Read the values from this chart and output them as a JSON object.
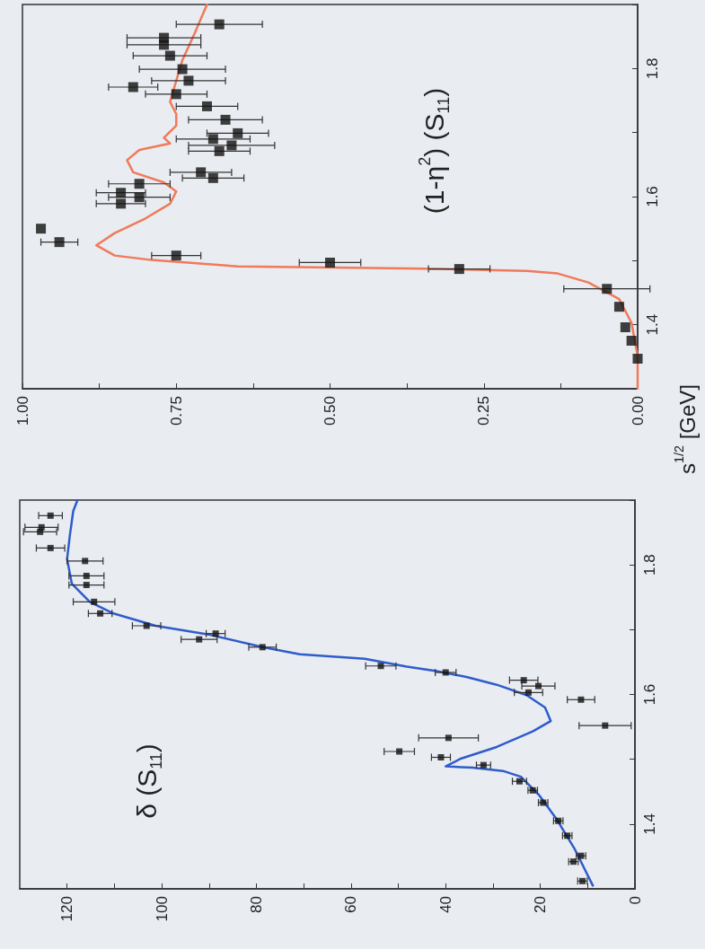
{
  "chart_data": [
    {
      "type": "scatter",
      "annotations": [
        "(1-η$^{2}$) (S$_{11}$)"
      ],
      "ylabel": "s$^{1/2}$ [GeV]",
      "ylim": [
        1.3,
        1.9
      ],
      "yticks": [
        {
          "value": 1.3,
          "label": null
        },
        1.4,
        {
          "value": 1.5,
          "label": null
        },
        1.6,
        {
          "value": 1.7,
          "label": null
        },
        1.8,
        {
          "value": 1.9,
          "label": null
        }
      ],
      "xlim": [
        1,
        0
      ],
      "xticks": [
        {
          "value": 0,
          "label": "0.00"
        },
        {
          "value": 0.125,
          "label": null
        },
        0.25,
        {
          "value": 0.375,
          "label": null
        },
        {
          "value": 0.5,
          "label": "0.50"
        },
        {
          "value": 0.625,
          "label": null
        },
        0.75,
        {
          "value": 0.875,
          "label": null
        },
        {
          "value": 1,
          "label": "1.00"
        }
      ],
      "marker": "square",
      "series": [
        {
          "type": "line",
          "color": "#f07a5a",
          "line_style": "solid",
          "marker": "none",
          "values": [
            1.3,
            1.351,
            1.403,
            1.44,
            1.466,
            1.48,
            1.484,
            1.487,
            1.489,
            1.491,
            1.501,
            1.508,
            1.524,
            1.543,
            1.566,
            1.589,
            1.608,
            1.622,
            1.638,
            1.657,
            1.673,
            1.683,
            1.692,
            1.711,
            1.729,
            1.748,
            1.781,
            1.813,
            1.855,
            1.9
          ],
          "x": [
            0,
            0,
            0.01,
            0.03,
            0.08,
            0.13,
            0.18,
            0.32,
            0.46,
            0.65,
            0.79,
            0.85,
            0.88,
            0.85,
            0.8,
            0.76,
            0.75,
            0.77,
            0.82,
            0.83,
            0.81,
            0.76,
            0.77,
            0.75,
            0.75,
            0.76,
            0.75,
            0.74,
            0.72,
            0.7
          ]
        },
        {
          "color": "#111111",
          "values": [
            1.347,
            1.375,
            1.396,
            1.428,
            1.456,
            1.487,
            1.497,
            1.508,
            1.529,
            1.55,
            1.589,
            1.599,
            1.606,
            1.62,
            1.629,
            1.638,
            1.671,
            1.68,
            1.69,
            1.699,
            1.72,
            1.741,
            1.76,
            1.771,
            1.781,
            1.799,
            1.82,
            1.837,
            1.848,
            1.869
          ],
          "x": [
            0,
            0.01,
            0.02,
            0.03,
            0.05,
            0.29,
            0.5,
            0.75,
            0.94,
            0.97,
            0.84,
            0.81,
            0.84,
            0.81,
            0.69,
            0.71,
            0.68,
            0.66,
            0.69,
            0.65,
            0.67,
            0.7,
            0.75,
            0.82,
            0.73,
            0.74,
            0.76,
            0.77,
            0.77,
            0.68
          ],
          "xerrors": [
            null,
            null,
            null,
            null,
            0.07,
            0.05,
            0.05,
            0.04,
            0.03,
            null,
            0.04,
            0.05,
            0.04,
            0.05,
            0.05,
            0.05,
            0.05,
            0.07,
            0.06,
            0.05,
            0.06,
            0.05,
            0.05,
            0.04,
            0.06,
            0.07,
            0.06,
            0.06,
            0.06,
            0.07
          ]
        }
      ]
    },
    {
      "type": "scatter",
      "annotations": [
        "δ (S$_{11}$)"
      ],
      "ylim": [
        1.3,
        1.9
      ],
      "yticks": [
        {
          "value": 1.3,
          "label": null
        },
        1.4,
        {
          "value": 1.5,
          "label": null
        },
        1.6,
        {
          "value": 1.7,
          "label": null
        },
        1.8,
        {
          "value": 1.9,
          "label": null
        }
      ],
      "xlim": [
        130,
        0
      ],
      "xticks": [
        0,
        {
          "value": 10,
          "label": null
        },
        20,
        {
          "value": 30,
          "label": null
        },
        40,
        {
          "value": 50,
          "label": null
        },
        60,
        {
          "value": 70,
          "label": null
        },
        80,
        {
          "value": 90,
          "label": null
        },
        100,
        {
          "value": 110,
          "label": null
        },
        120
      ],
      "marker": "square",
      "series": [
        {
          "type": "line",
          "color": "#2f5ccc",
          "line_style": "solid",
          "marker": "none",
          "values": [
            1.305,
            1.361,
            1.407,
            1.445,
            1.473,
            1.482,
            1.487,
            1.489,
            1.501,
            1.519,
            1.543,
            1.559,
            1.58,
            1.599,
            1.615,
            1.627,
            1.636,
            1.643,
            1.655,
            1.662,
            1.673,
            1.692,
            1.706,
            1.725,
            1.743,
            1.771,
            1.809,
            1.846,
            1.883,
            1.9
          ],
          "x": [
            8.9,
            12.7,
            16.5,
            20.3,
            24.1,
            27.9,
            34.3,
            40,
            36.8,
            29.2,
            21.6,
            17.8,
            19,
            22.9,
            29.2,
            35.6,
            41.9,
            48.2,
            57.1,
            70.8,
            78.7,
            89.8,
            101.3,
            110.2,
            115.2,
            119,
            120,
            119.4,
            118.7,
            117.8
          ]
        },
        {
          "color": "#111111",
          "values": [
            1.312,
            1.342,
            1.351,
            1.382,
            1.405,
            1.433,
            1.452,
            1.466,
            1.491,
            1.503,
            1.512,
            1.533,
            1.552,
            1.592,
            1.603,
            1.613,
            1.622,
            1.634,
            1.644,
            1.673,
            1.685,
            1.694,
            1.706,
            1.725,
            1.743,
            1.769,
            1.783,
            1.806,
            1.826,
            1.851,
            1.858,
            1.876
          ],
          "x": [
            11.1,
            13,
            11.4,
            14.3,
            16.2,
            19.4,
            21.6,
            24.4,
            32,
            41,
            49.8,
            39.4,
            6.3,
            11.4,
            22.5,
            20.4,
            23.5,
            40,
            53.7,
            78.7,
            92.1,
            88.6,
            103.2,
            113,
            114.3,
            115.9,
            115.9,
            116.2,
            123.5,
            125.7,
            125.4,
            123.5
          ],
          "xerrors": [
            1,
            1,
            1,
            1,
            1,
            1,
            1,
            1.5,
            1.5,
            2,
            3.2,
            6.3,
            5.5,
            2.9,
            3,
            3.5,
            3,
            2.2,
            3.2,
            2.9,
            3.8,
            2,
            3,
            2.5,
            4.4,
            3.7,
            3.7,
            3.8,
            3,
            3.5,
            3.5,
            2.5
          ]
        }
      ]
    }
  ]
}
